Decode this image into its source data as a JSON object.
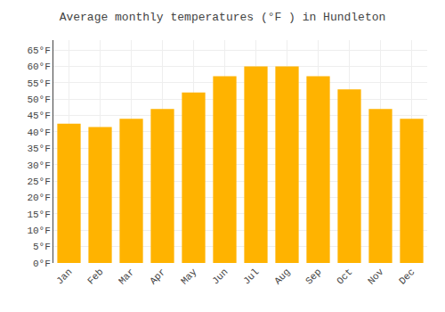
{
  "chart_data": {
    "type": "bar",
    "title": "Average monthly temperatures (°F ) in Hundleton",
    "categories": [
      "Jan",
      "Feb",
      "Mar",
      "Apr",
      "May",
      "Jun",
      "Jul",
      "Aug",
      "Sep",
      "Oct",
      "Nov",
      "Dec"
    ],
    "values": [
      42.5,
      41.5,
      44,
      47,
      52,
      57,
      60,
      60,
      57,
      53,
      47,
      44
    ],
    "color": "#FFB300",
    "ylim": [
      0,
      68
    ],
    "yticks": [
      {
        "value": 0,
        "label": "0°F"
      },
      {
        "value": 5,
        "label": "5°F"
      },
      {
        "value": 10,
        "label": "10°F"
      },
      {
        "value": 15,
        "label": "15°F"
      },
      {
        "value": 20,
        "label": "20°F"
      },
      {
        "value": 25,
        "label": "25°F"
      },
      {
        "value": 30,
        "label": "30°F"
      },
      {
        "value": 35,
        "label": "35°F"
      },
      {
        "value": 40,
        "label": "40°F"
      },
      {
        "value": 45,
        "label": "45°F"
      },
      {
        "value": 50,
        "label": "50°F"
      },
      {
        "value": 55,
        "label": "55°F"
      },
      {
        "value": 60,
        "label": "60°F"
      },
      {
        "value": 65,
        "label": "65°F"
      }
    ],
    "grid": true
  }
}
